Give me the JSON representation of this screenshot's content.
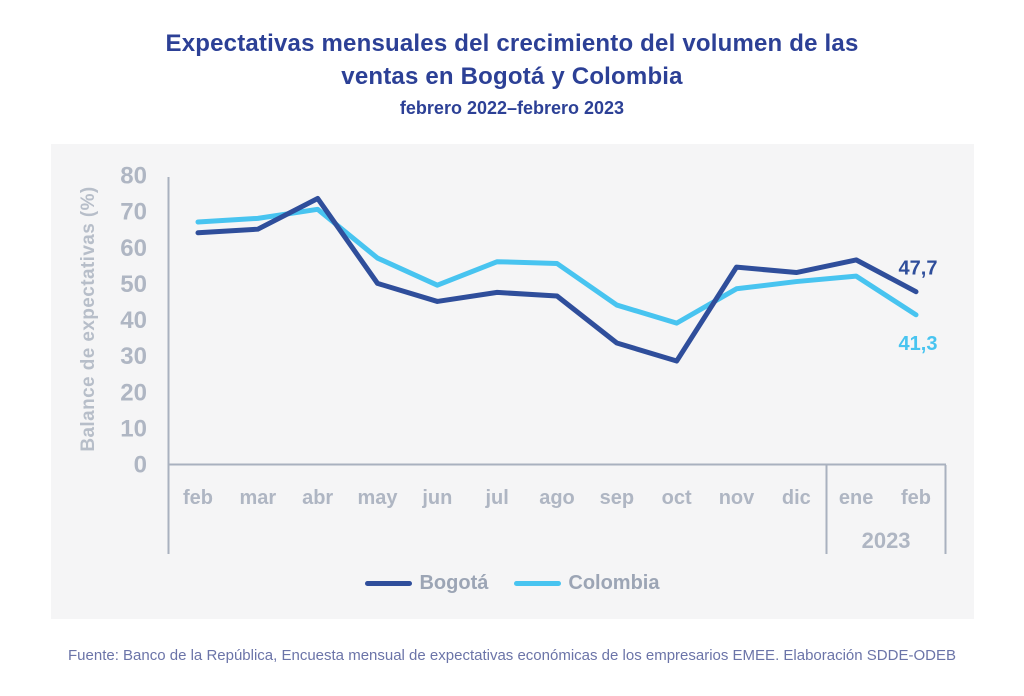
{
  "header": {
    "title_line1": "Expectativas mensuales del crecimiento del volumen de las",
    "title_line2": "ventas en Bogotá y Colombia",
    "subtitle": "febrero 2022–febrero 2023"
  },
  "chart_data": {
    "type": "line",
    "title": "Expectativas mensuales del crecimiento del volumen de las ventas en Bogotá y Colombia",
    "subtitle": "febrero 2022–febrero 2023",
    "categories": [
      "feb",
      "mar",
      "abr",
      "may",
      "jun",
      "jul",
      "ago",
      "sep",
      "oct",
      "nov",
      "dic",
      "ene",
      "feb"
    ],
    "year_bracket": {
      "label": "2023",
      "start_index": 11,
      "end_index": 12
    },
    "series": [
      {
        "name": "Bogotá",
        "color": "#2F4E9B",
        "values": [
          64,
          65,
          73.5,
          50,
          45,
          47.5,
          46.5,
          33.5,
          28.5,
          54.5,
          53,
          56.5,
          47.7
        ],
        "end_label": "47,7"
      },
      {
        "name": "Colombia",
        "color": "#48C4F0",
        "values": [
          67,
          68,
          70.5,
          57,
          49.5,
          56,
          55.5,
          44,
          39,
          48.5,
          50.5,
          52,
          41.3
        ],
        "end_label": "41,3"
      }
    ],
    "xlabel": "",
    "ylabel": "Balance de expectativas (%)",
    "ylim": [
      0,
      80
    ],
    "yticks": [
      0,
      10,
      20,
      30,
      40,
      50,
      60,
      70,
      80
    ],
    "grid": false,
    "legend_position": "bottom"
  },
  "footer": {
    "source": "Fuente: Banco de la República, Encuesta mensual de expectativas económicas de los empresarios EMEE. Elaboración SDDE-ODEB"
  },
  "colors": {
    "title_text": "#2C4096",
    "axis_text": "#AFB6C3",
    "axis_line": "#A9B1BF",
    "panel_background": "#F5F5F6",
    "legend_text": "#9CA5B5",
    "footer_text": "#6B74A8"
  }
}
